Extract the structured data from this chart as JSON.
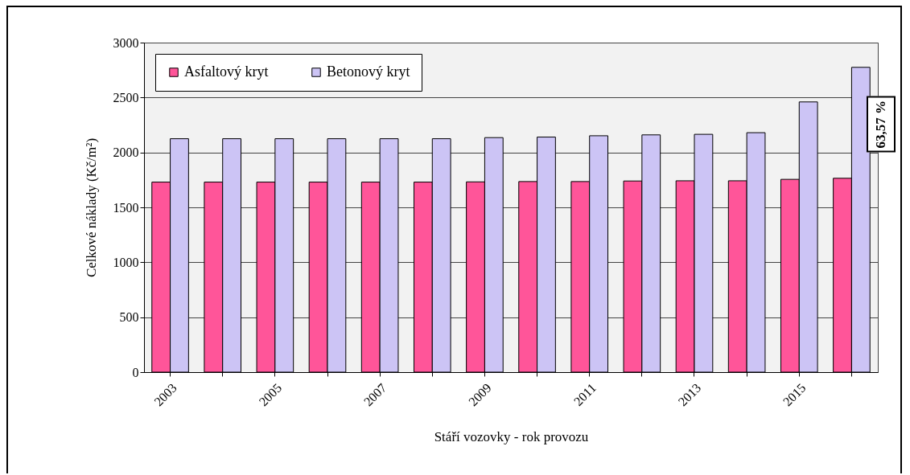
{
  "chart_data": {
    "type": "bar",
    "xlabel": "Stáří vozovky - rok provozu",
    "ylabel": "Celkové náklady (Kč/m²)",
    "categories": [
      "2003",
      null,
      "2005",
      null,
      "2007",
      null,
      "2009",
      null,
      "2011",
      null,
      "2013",
      null,
      "2015",
      null
    ],
    "series": [
      {
        "name": "Asfaltový kryt",
        "color": "#ff5599",
        "values": [
          1730,
          1730,
          1730,
          1730,
          1730,
          1730,
          1732,
          1735,
          1735,
          1740,
          1742,
          1742,
          1755,
          1765
        ]
      },
      {
        "name": "Betonový kryt",
        "color": "#ccc4f5",
        "values": [
          2125,
          2125,
          2125,
          2125,
          2125,
          2125,
          2135,
          2140,
          2152,
          2160,
          2165,
          2180,
          2460,
          2775
        ]
      }
    ],
    "ylim": [
      0,
      3000
    ],
    "yticks": [
      0,
      500,
      1000,
      1500,
      2000,
      2500,
      3000
    ],
    "grid": "y",
    "legend": "top left",
    "annotations": [
      "63,57 %"
    ]
  }
}
